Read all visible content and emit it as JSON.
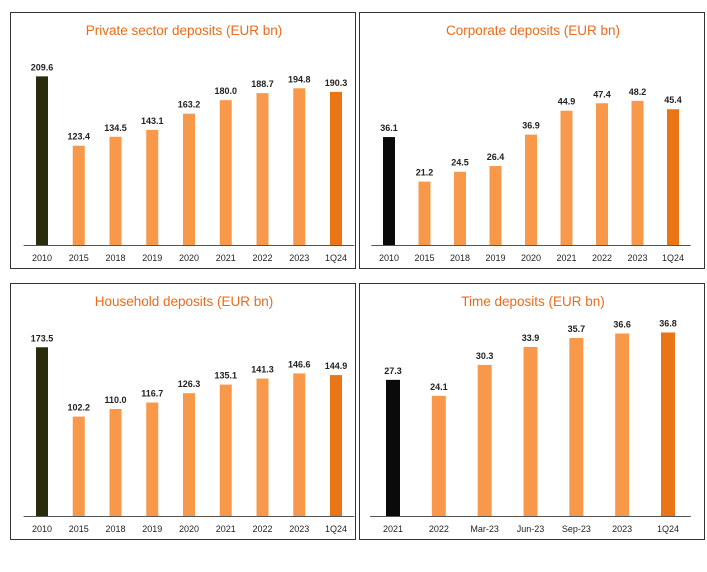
{
  "colors": {
    "title": "#ec6b1a",
    "base_dark_olive": "#2b2c0e",
    "base_black": "#0a0a0a",
    "bar": "#f8984a",
    "latest": "#e97516",
    "axis": "#555555"
  },
  "chart_data": [
    {
      "type": "bar",
      "title": "Private sector deposits (EUR bn)",
      "categories": [
        "2010",
        "2015",
        "2018",
        "2019",
        "2020",
        "2021",
        "2022",
        "2023",
        "1Q24"
      ],
      "values": [
        209.6,
        123.4,
        134.5,
        143.1,
        163.2,
        180.0,
        188.7,
        194.8,
        190.3
      ],
      "labels": [
        "209.6",
        "123.4",
        "134.5",
        "143.1",
        "163.2",
        "180.0",
        "188.7",
        "194.8",
        "190.3"
      ],
      "ylim": [
        0,
        220
      ],
      "base_color": "base_dark_olive",
      "xlabel": "",
      "ylabel": ""
    },
    {
      "type": "bar",
      "title": "Corporate deposits (EUR bn)",
      "categories": [
        "2010",
        "2015",
        "2018",
        "2019",
        "2020",
        "2021",
        "2022",
        "2023",
        "1Q24"
      ],
      "values": [
        36.1,
        21.2,
        24.5,
        26.4,
        36.9,
        44.9,
        47.4,
        48.2,
        45.4
      ],
      "labels": [
        "36.1",
        "21.2",
        "24.5",
        "26.4",
        "36.9",
        "44.9",
        "47.4",
        "48.2",
        "45.4"
      ],
      "ylim": [
        0,
        52.5
      ],
      "base_color": "base_black",
      "xlabel": "",
      "ylabel": ""
    },
    {
      "type": "bar",
      "title": "Household deposits (EUR bn)",
      "categories": [
        "2010",
        "2015",
        "2018",
        "2019",
        "2020",
        "2021",
        "2022",
        "2023",
        "1Q24"
      ],
      "values": [
        173.5,
        102.2,
        110.0,
        116.7,
        126.3,
        135.1,
        141.3,
        146.6,
        144.9
      ],
      "labels": [
        "173.5",
        "102.2",
        "110.0",
        "116.7",
        "126.3",
        "135.1",
        "141.3",
        "146.6",
        "144.9"
      ],
      "ylim": [
        0,
        182
      ],
      "base_color": "base_dark_olive",
      "xlabel": "",
      "ylabel": ""
    },
    {
      "type": "bar",
      "title": "Time deposits (EUR bn)",
      "categories": [
        "2021",
        "2022",
        "Mar-23",
        "Jun-23",
        "Sep-23",
        "2023",
        "1Q24"
      ],
      "values": [
        27.3,
        24.1,
        30.3,
        33.9,
        35.7,
        36.6,
        36.8
      ],
      "labels": [
        "27.3",
        "24.1",
        "30.3",
        "33.9",
        "35.7",
        "36.6",
        "36.8"
      ],
      "ylim": [
        0,
        38.5
      ],
      "base_color": "base_black",
      "xlabel": "",
      "ylabel": ""
    }
  ]
}
